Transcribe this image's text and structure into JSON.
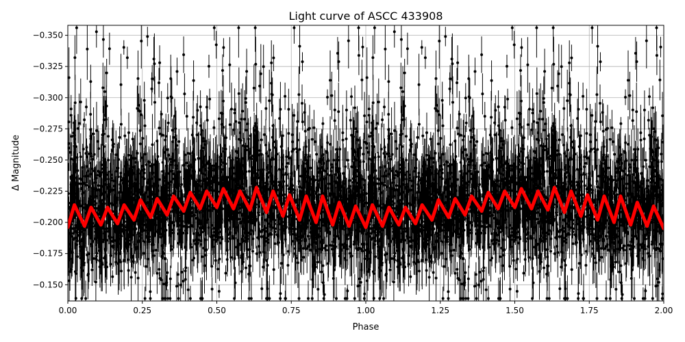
{
  "chart_data": {
    "type": "scatter",
    "title": "Light curve of ASCC 433908",
    "xlabel": "Phase",
    "ylabel": "Δ Magnitude",
    "xlim": [
      0.0,
      2.0
    ],
    "ylim": [
      -0.358,
      -0.137
    ],
    "y_inverted": true,
    "grid": true,
    "xticks": [
      "0.00",
      "0.25",
      "0.50",
      "0.75",
      "1.00",
      "1.25",
      "1.50",
      "1.75",
      "2.00"
    ],
    "yticks": [
      "−0.350",
      "−0.325",
      "−0.300",
      "−0.275",
      "−0.250",
      "−0.225",
      "−0.200",
      "−0.175",
      "−0.150"
    ],
    "ytick_values": [
      -0.35,
      -0.325,
      -0.3,
      -0.275,
      -0.25,
      -0.225,
      -0.2,
      -0.175,
      -0.15
    ],
    "xtick_values": [
      0,
      0.25,
      0.5,
      0.75,
      1.0,
      1.25,
      1.5,
      1.75,
      2.0
    ],
    "series": [
      {
        "type": "scatter-errorbar",
        "color": "#000000",
        "y_range_observed": [
          -0.36,
          -0.137
        ]
      },
      {
        "type": "line",
        "color": "#ff0000",
        "x": [
          0,
          0.022,
          0.056,
          0.078,
          0.111,
          0.133,
          0.167,
          0.189,
          0.222,
          0.244,
          0.278,
          0.3,
          0.333,
          0.355,
          0.389,
          0.411,
          0.444,
          0.466,
          0.5,
          0.522,
          0.556,
          0.578,
          0.611,
          0.633,
          0.667,
          0.689,
          0.722,
          0.744,
          0.778,
          0.8,
          0.833,
          0.855,
          0.889,
          0.911,
          0.944,
          0.966,
          1.0,
          1.022,
          1.056,
          1.078,
          1.111,
          1.133,
          1.167,
          1.189,
          1.222,
          1.244,
          1.278,
          1.3,
          1.333,
          1.355,
          1.389,
          1.411,
          1.444,
          1.466,
          1.5,
          1.522,
          1.556,
          1.578,
          1.611,
          1.633,
          1.667,
          1.689,
          1.722,
          1.744,
          1.778,
          1.8,
          1.833,
          1.855,
          1.889,
          1.911,
          1.944,
          1.966,
          2.0
        ],
        "y": [
          -0.196,
          -0.214,
          -0.197,
          -0.212,
          -0.198,
          -0.212,
          -0.199,
          -0.214,
          -0.202,
          -0.218,
          -0.204,
          -0.219,
          -0.206,
          -0.221,
          -0.209,
          -0.224,
          -0.211,
          -0.225,
          -0.212,
          -0.227,
          -0.211,
          -0.225,
          -0.21,
          -0.228,
          -0.208,
          -0.225,
          -0.205,
          -0.222,
          -0.202,
          -0.221,
          -0.2,
          -0.221,
          -0.198,
          -0.216,
          -0.197,
          -0.213,
          -0.196,
          -0.214,
          -0.197,
          -0.212,
          -0.198,
          -0.212,
          -0.199,
          -0.214,
          -0.202,
          -0.218,
          -0.204,
          -0.219,
          -0.206,
          -0.221,
          -0.209,
          -0.224,
          -0.211,
          -0.225,
          -0.212,
          -0.227,
          -0.211,
          -0.225,
          -0.21,
          -0.228,
          -0.208,
          -0.225,
          -0.205,
          -0.222,
          -0.202,
          -0.221,
          -0.2,
          -0.221,
          -0.198,
          -0.216,
          -0.197,
          -0.213,
          -0.195
        ]
      }
    ]
  }
}
